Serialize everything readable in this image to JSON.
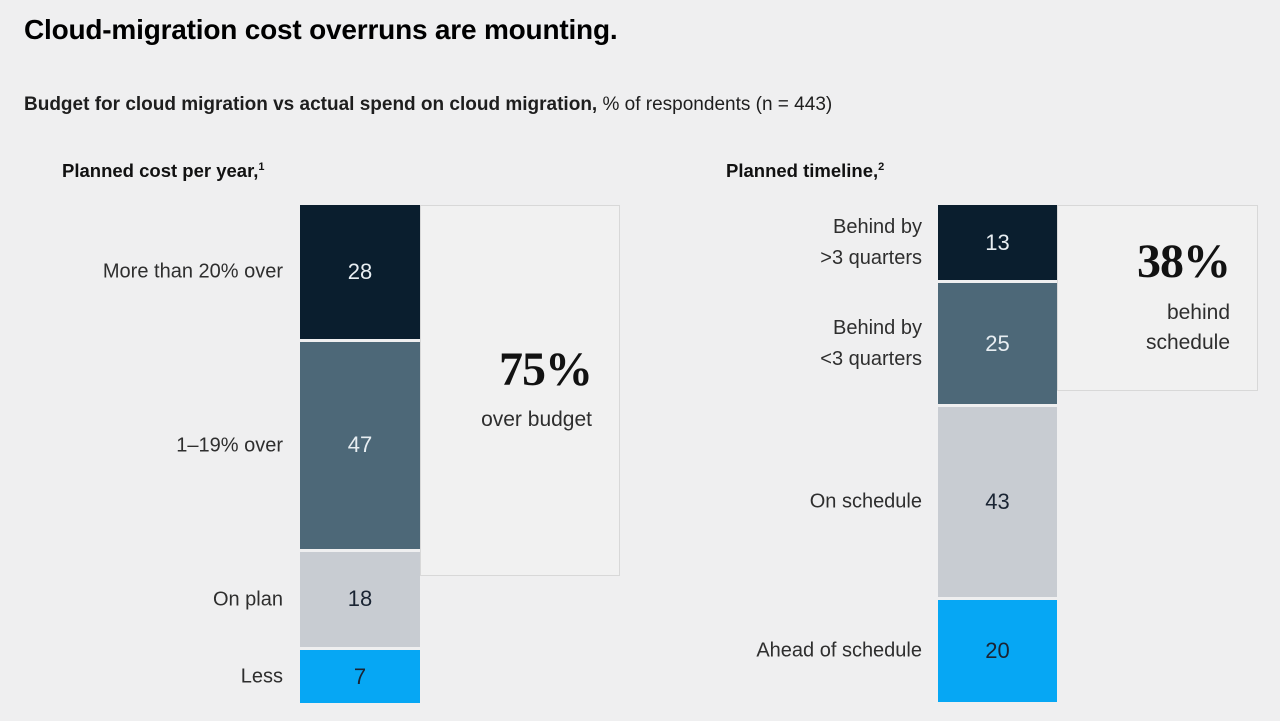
{
  "header": {
    "title": "Cloud-migration cost overruns are mounting.",
    "subtitle_bold": "Budget for cloud migration vs actual spend on cloud migration,",
    "subtitle_regular": "% of respondents (n = 443)"
  },
  "colors": {
    "navy": "#0a1e2e",
    "slate": "#4d6878",
    "gray": "#c8ccd2",
    "blue": "#06a7f4",
    "background": "#efeff0",
    "callout_bg": "#f1f1f1",
    "callout_border": "#d8d8d8"
  },
  "chart_data": [
    {
      "type": "bar",
      "stacked": true,
      "orientation": "vertical-single-stack",
      "section_title": "Planned cost per year,",
      "footnote_marker": "1",
      "categories": [
        "More than 20% over",
        "1–19% over",
        "On plan",
        "Less"
      ],
      "values": [
        28,
        47,
        18,
        7
      ],
      "segment_colors": [
        "navy",
        "slate",
        "gray",
        "blue"
      ],
      "value_text_tones": [
        "light",
        "light",
        "dark",
        "dark"
      ],
      "callout": {
        "value": "75%",
        "label": "over budget",
        "spans_categories": [
          "More than 20% over",
          "1–19% over"
        ]
      }
    },
    {
      "type": "bar",
      "stacked": true,
      "orientation": "vertical-single-stack",
      "section_title": "Planned timeline,",
      "footnote_marker": "2",
      "categories": [
        "Behind by\n>3 quarters",
        "Behind by\n<3 quarters",
        "On schedule",
        "Ahead of schedule"
      ],
      "values": [
        13,
        25,
        43,
        20
      ],
      "segment_colors": [
        "navy",
        "slate",
        "gray",
        "blue"
      ],
      "value_text_tones": [
        "light",
        "light",
        "dark",
        "dark"
      ],
      "callout": {
        "value": "38%",
        "label": "behind\nschedule",
        "spans_categories": [
          "Behind by >3 quarters",
          "Behind by <3 quarters"
        ]
      }
    }
  ]
}
